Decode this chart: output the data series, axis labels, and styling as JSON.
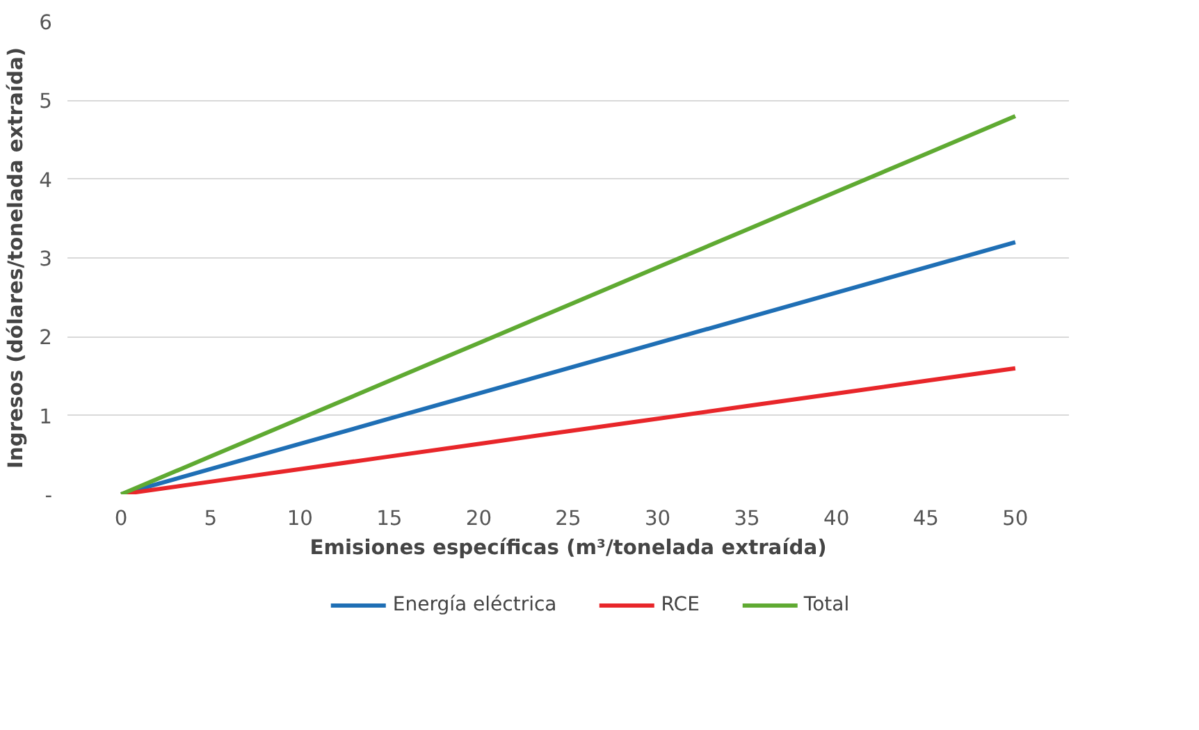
{
  "chart_data": {
    "type": "line",
    "xlabel": "Emisiones específicas (m³/tonelada extraída)",
    "ylabel": "Ingresos (dólares/tonelada extraída)",
    "x": [
      0,
      5,
      10,
      15,
      20,
      25,
      30,
      35,
      40,
      45,
      50
    ],
    "xlim": [
      -3,
      53
    ],
    "xticks": [
      0,
      5,
      10,
      15,
      20,
      25,
      30,
      35,
      40,
      45,
      50
    ],
    "ylim": [
      0,
      6
    ],
    "yticks": [
      {
        "value": 0,
        "label": "-"
      },
      1,
      2,
      3,
      4,
      5,
      6
    ],
    "series": [
      {
        "name": "Energía eléctrica",
        "color": "#1f6fb5",
        "values": [
          0,
          0.32,
          0.64,
          0.96,
          1.28,
          1.6,
          1.92,
          2.24,
          2.56,
          2.88,
          3.2
        ]
      },
      {
        "name": "RCE",
        "color": "#e8262a",
        "values": [
          0,
          0.16,
          0.32,
          0.48,
          0.64,
          0.8,
          0.96,
          1.12,
          1.28,
          1.44,
          1.6
        ]
      },
      {
        "name": "Total",
        "color": "#5faa32",
        "values": [
          0,
          0.48,
          0.96,
          1.44,
          1.92,
          2.4,
          2.88,
          3.36,
          3.84,
          4.32,
          4.8
        ]
      }
    ],
    "grid": "y",
    "legend": "bottom",
    "marker": "none",
    "line_style": "solid"
  }
}
